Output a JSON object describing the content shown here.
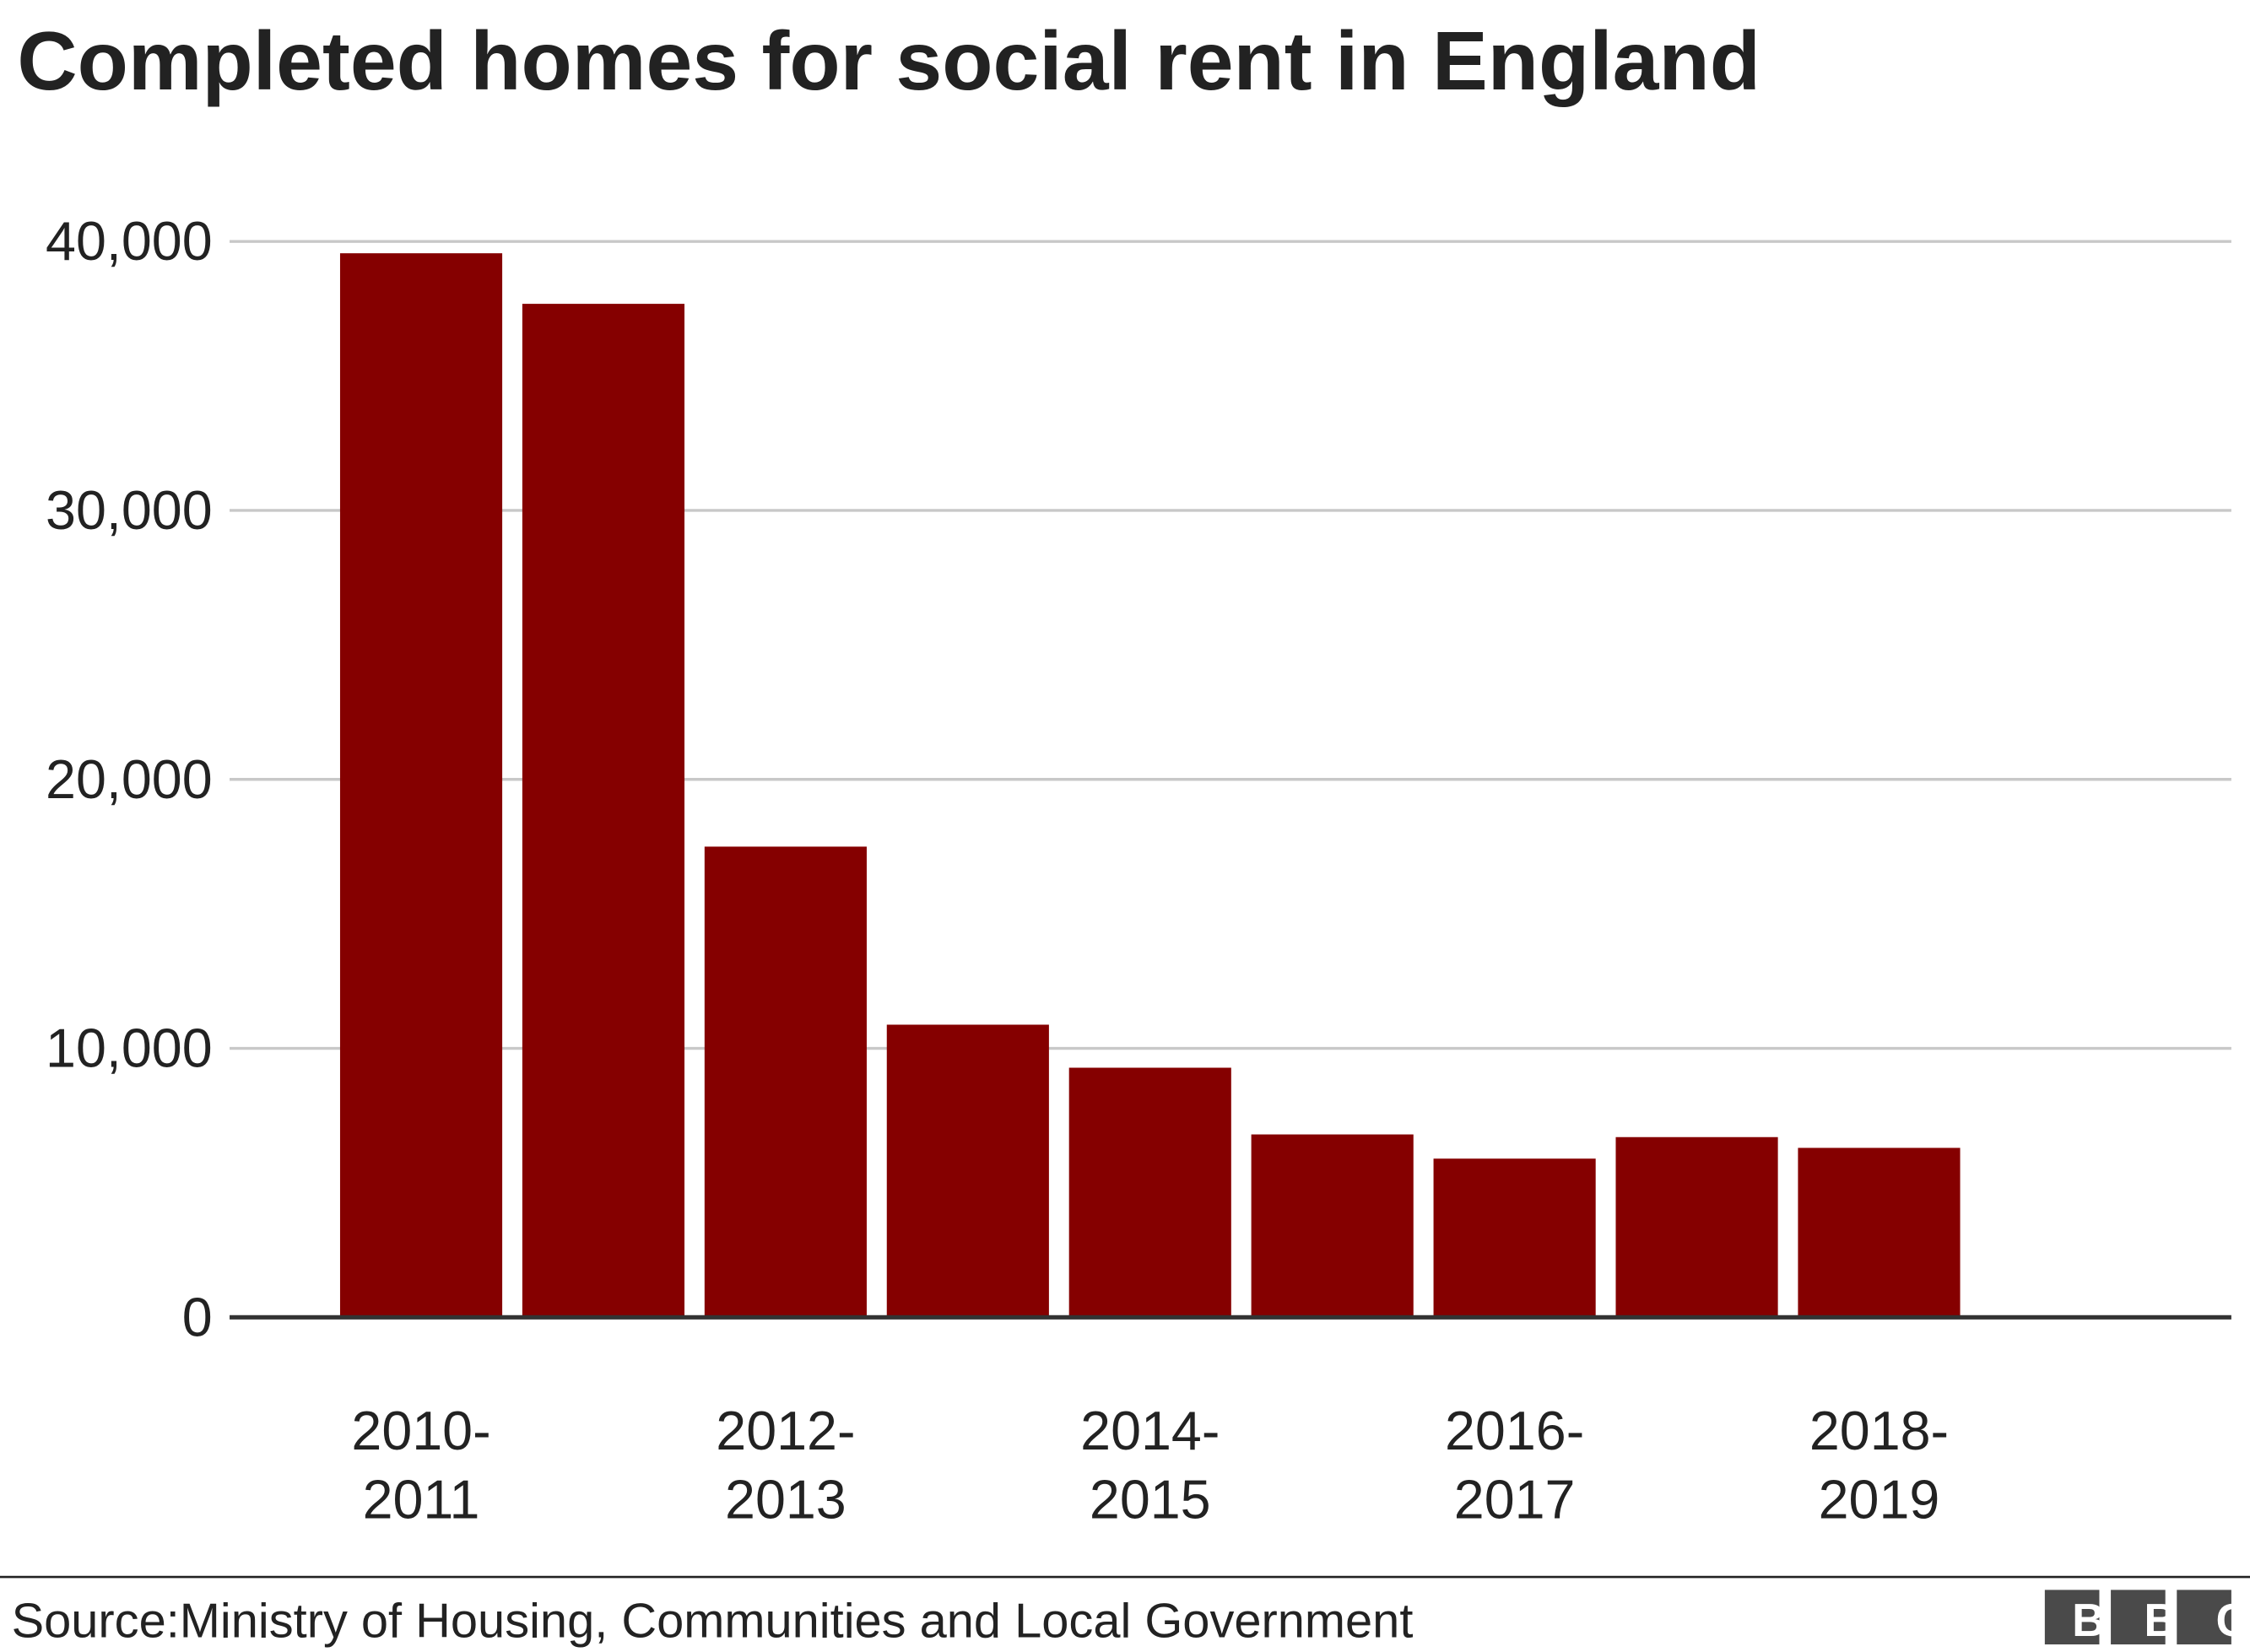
{
  "chart_data": {
    "type": "bar",
    "title": "Completed homes for social rent in England",
    "categories": [
      "2010-2011",
      null,
      "2012-2013",
      null,
      "2014-2015",
      null,
      "2016-2017",
      null,
      "2018-2019"
    ],
    "values": [
      39560,
      37680,
      17500,
      10880,
      9280,
      6800,
      5900,
      6700,
      6300
    ],
    "color": "#850000",
    "ylim": [
      0,
      40000
    ],
    "yticks": [
      0,
      {
        "value": 10000,
        "label": "10,000"
      },
      {
        "value": 20000,
        "label": "20,000"
      },
      {
        "value": 30000,
        "label": "30,000"
      },
      {
        "value": 40000,
        "label": "40,000"
      }
    ],
    "grid": true,
    "source": "Source:Ministry of Housing, Communities and Local Government",
    "logo": "BBC"
  }
}
